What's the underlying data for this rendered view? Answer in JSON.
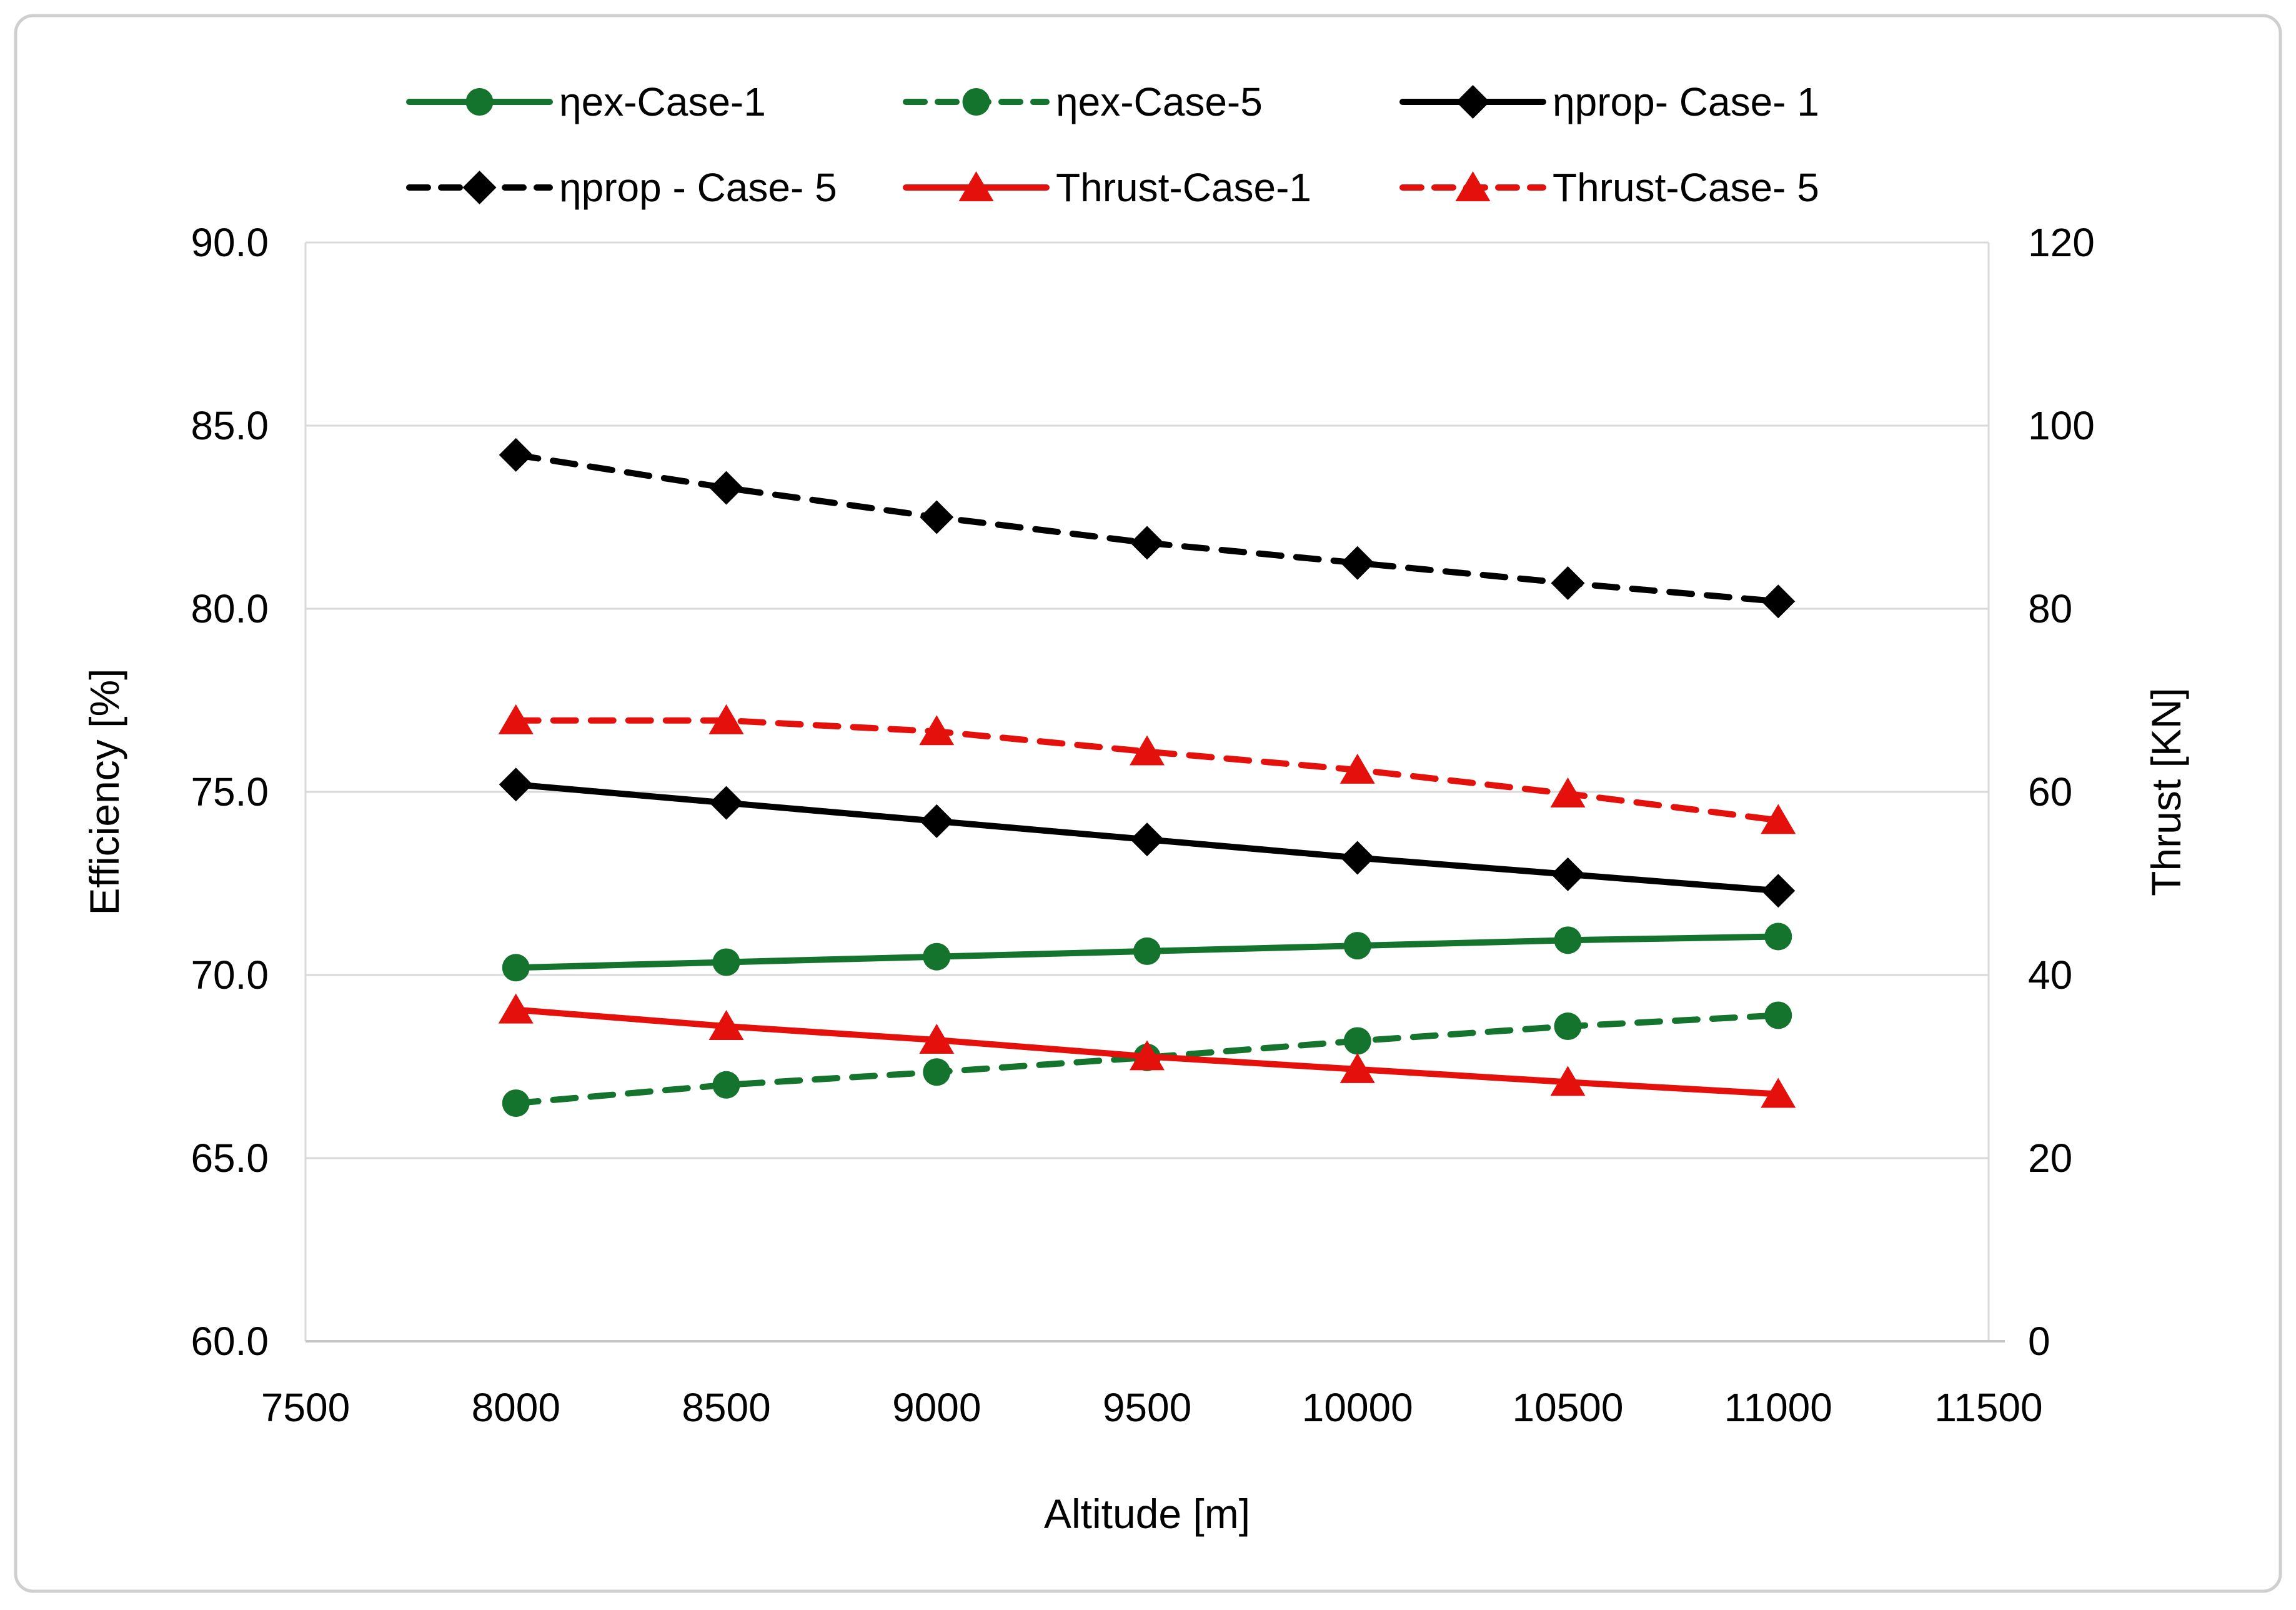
{
  "chart_data": {
    "type": "line",
    "title": "",
    "x": [
      8000,
      8500,
      9000,
      9500,
      10000,
      10500,
      11000
    ],
    "x_axis": {
      "label": "Altitude [m]",
      "min": 7500,
      "max": 11500,
      "tick_step": 500,
      "ticks": [
        7500,
        8000,
        8500,
        9000,
        9500,
        10000,
        10500,
        11000,
        11500
      ]
    },
    "y_axis_left": {
      "label": "Efficiency [%]",
      "min": 60,
      "max": 90,
      "tick_step": 5,
      "ticks": [
        90,
        85,
        80,
        75,
        70,
        65,
        60
      ],
      "tick_labels": [
        "90.0",
        "85.0",
        "80.0",
        "75.0",
        "70.0",
        "65.0",
        "60.0"
      ]
    },
    "y_axis_right": {
      "label": "Thrust [KN]",
      "min": 0,
      "max": 120,
      "tick_step": 20,
      "ticks": [
        120,
        100,
        80,
        60,
        40,
        20,
        0
      ],
      "tick_labels": [
        "120",
        "100",
        "80",
        "60",
        "40",
        "20",
        "0"
      ]
    },
    "grid": true,
    "legend_position": "top",
    "series": [
      {
        "name": "ηex-Case-1",
        "axis": "left",
        "color": "#14732d",
        "dash": "solid",
        "marker": "circle",
        "values": [
          70.2,
          70.35,
          70.5,
          70.65,
          70.8,
          70.95,
          71.05
        ]
      },
      {
        "name": "ηex-Case-5",
        "axis": "left",
        "color": "#14732d",
        "dash": "dashed",
        "marker": "circle",
        "values": [
          66.5,
          67.0,
          67.35,
          67.75,
          68.2,
          68.6,
          68.9
        ]
      },
      {
        "name": "ηprop- Case- 1",
        "axis": "left",
        "color": "#000000",
        "dash": "solid",
        "marker": "diamond",
        "values": [
          75.2,
          74.7,
          74.2,
          73.7,
          73.2,
          72.75,
          72.3
        ]
      },
      {
        "name": "ηprop - Case- 5",
        "axis": "left",
        "color": "#000000",
        "dash": "dashed",
        "marker": "diamond",
        "values": [
          84.2,
          83.3,
          82.5,
          81.8,
          81.25,
          80.7,
          80.2
        ]
      },
      {
        "name": "Thrust-Case-1",
        "axis": "right",
        "color": "#e4100c",
        "dash": "solid",
        "marker": "triangle",
        "values": [
          36.2,
          34.4,
          32.9,
          31.1,
          29.7,
          28.3,
          27.0
        ]
      },
      {
        "name": "Thrust-Case- 5",
        "axis": "right",
        "color": "#e4100c",
        "dash": "dashed",
        "marker": "triangle",
        "values": [
          67.8,
          67.8,
          66.6,
          64.4,
          62.4,
          59.8,
          56.9
        ]
      }
    ],
    "colors": {
      "background": "#ffffff",
      "frame_border": "#d0cece",
      "gridline": "#d9d9d9",
      "axis_line": "#c6c4c4",
      "text": "#000000"
    }
  }
}
